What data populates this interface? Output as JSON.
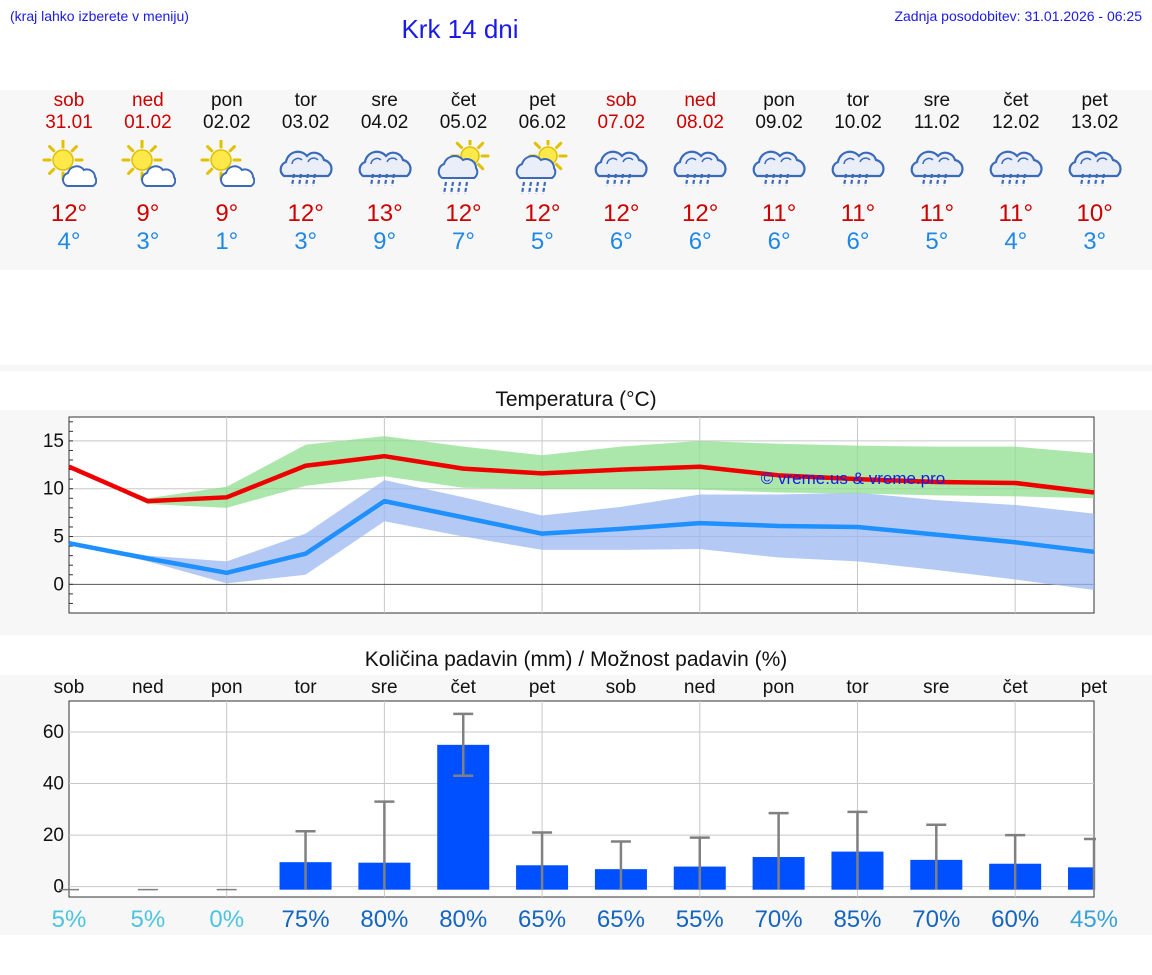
{
  "header": {
    "hint": "(kraj lahko izberete v meniju)",
    "title": "Krk 14 dni",
    "updated": "Zadnja posodobitev: 31.01.2026 - 06:25"
  },
  "days": [
    {
      "name": "sob",
      "date": "31.01",
      "weekend": true,
      "icon": "sun-cloud-icon",
      "tmax": "12°",
      "tmin": "4°"
    },
    {
      "name": "ned",
      "date": "01.02",
      "weekend": true,
      "icon": "sun-cloud-icon",
      "tmax": "9°",
      "tmin": "3°"
    },
    {
      "name": "pon",
      "date": "02.02",
      "weekend": false,
      "icon": "sun-cloud-icon",
      "tmax": "9°",
      "tmin": "1°"
    },
    {
      "name": "tor",
      "date": "03.02",
      "weekend": false,
      "icon": "rain-cloud-icon",
      "tmax": "12°",
      "tmin": "3°"
    },
    {
      "name": "sre",
      "date": "04.02",
      "weekend": false,
      "icon": "rain-cloud-icon",
      "tmax": "13°",
      "tmin": "9°"
    },
    {
      "name": "čet",
      "date": "05.02",
      "weekend": false,
      "icon": "sun-rain-icon",
      "tmax": "12°",
      "tmin": "7°"
    },
    {
      "name": "pet",
      "date": "06.02",
      "weekend": false,
      "icon": "sun-rain-icon",
      "tmax": "12°",
      "tmin": "5°"
    },
    {
      "name": "sob",
      "date": "07.02",
      "weekend": true,
      "icon": "rain-cloud-icon",
      "tmax": "12°",
      "tmin": "6°"
    },
    {
      "name": "ned",
      "date": "08.02",
      "weekend": true,
      "icon": "rain-cloud-icon",
      "tmax": "12°",
      "tmin": "6°"
    },
    {
      "name": "pon",
      "date": "09.02",
      "weekend": false,
      "icon": "rain-cloud-icon",
      "tmax": "11°",
      "tmin": "6°"
    },
    {
      "name": "tor",
      "date": "10.02",
      "weekend": false,
      "icon": "rain-cloud-icon",
      "tmax": "11°",
      "tmin": "6°"
    },
    {
      "name": "sre",
      "date": "11.02",
      "weekend": false,
      "icon": "rain-cloud-icon",
      "tmax": "11°",
      "tmin": "5°"
    },
    {
      "name": "čet",
      "date": "12.02",
      "weekend": false,
      "icon": "rain-cloud-icon",
      "tmax": "11°",
      "tmin": "4°"
    },
    {
      "name": "pet",
      "date": "13.02",
      "weekend": false,
      "icon": "rain-cloud-icon",
      "tmax": "10°",
      "tmin": "3°"
    }
  ],
  "colors": {
    "max_line": "#ee0000",
    "max_band": "#8fdf8f",
    "min_line": "#1e90ff",
    "min_band": "#9bb8f0",
    "bar": "#0050ff",
    "errbar": "#808080",
    "link": "#1a1ae6"
  },
  "chart_data": [
    {
      "type": "line",
      "title": "Temperatura (°C)",
      "watermark": "© vreme.us & vreme.pro",
      "ylim": [
        -3,
        17.5
      ],
      "yticks": [
        0,
        5,
        10,
        15
      ],
      "x": [
        0,
        1,
        2,
        3,
        4,
        5,
        6,
        7,
        8,
        9,
        10,
        11,
        12,
        13
      ],
      "series": [
        {
          "name": "max",
          "values": [
            12.3,
            8.7,
            9.1,
            12.4,
            13.4,
            12.1,
            11.6,
            12.0,
            12.3,
            11.4,
            11.0,
            10.7,
            10.6,
            9.6
          ],
          "band_low": [
            12.3,
            8.4,
            8.0,
            10.3,
            11.3,
            10.1,
            10.0,
            10.0,
            9.9,
            9.6,
            9.5,
            9.3,
            9.2,
            9.0
          ],
          "band_high": [
            12.3,
            9.0,
            10.2,
            14.6,
            15.5,
            14.4,
            13.5,
            14.4,
            15.0,
            14.7,
            14.5,
            14.4,
            14.4,
            13.7
          ]
        },
        {
          "name": "min",
          "values": [
            4.3,
            2.7,
            1.2,
            3.2,
            8.7,
            7.0,
            5.3,
            5.8,
            6.4,
            6.1,
            6.0,
            5.2,
            4.4,
            3.4
          ],
          "band_low": [
            4.3,
            2.4,
            0.1,
            1.0,
            6.6,
            5.0,
            3.6,
            3.6,
            3.7,
            2.8,
            2.4,
            1.5,
            0.5,
            -0.6
          ],
          "band_high": [
            4.3,
            3.0,
            2.4,
            5.3,
            10.9,
            9.1,
            7.2,
            8.1,
            9.4,
            9.4,
            9.6,
            8.8,
            8.3,
            7.4
          ]
        }
      ]
    },
    {
      "type": "bar",
      "title": "Količina padavin (mm) / Možnost padavin (%)",
      "categories": [
        "sob",
        "ned",
        "pon",
        "tor",
        "sre",
        "čet",
        "pet",
        "sob",
        "ned",
        "pon",
        "tor",
        "sre",
        "čet",
        "pet"
      ],
      "ylim": [
        -4,
        72
      ],
      "yticks": [
        0,
        20,
        40,
        60
      ],
      "values": [
        0,
        0,
        0,
        9.5,
        9.3,
        55,
        8.3,
        6.8,
        7.8,
        11.5,
        13.6,
        10.4,
        8.9,
        7.5
      ],
      "err_low": [
        0,
        0,
        0,
        0,
        0,
        43,
        0,
        0,
        0,
        0,
        0,
        0,
        0,
        0
      ],
      "err_high": [
        0,
        0,
        0,
        21.5,
        33,
        67,
        21,
        17.5,
        19,
        28.5,
        29,
        24,
        20,
        18.5
      ],
      "probability": [
        "5%",
        "5%",
        "0%",
        "75%",
        "80%",
        "80%",
        "65%",
        "65%",
        "55%",
        "70%",
        "85%",
        "70%",
        "60%",
        "45%"
      ]
    }
  ]
}
